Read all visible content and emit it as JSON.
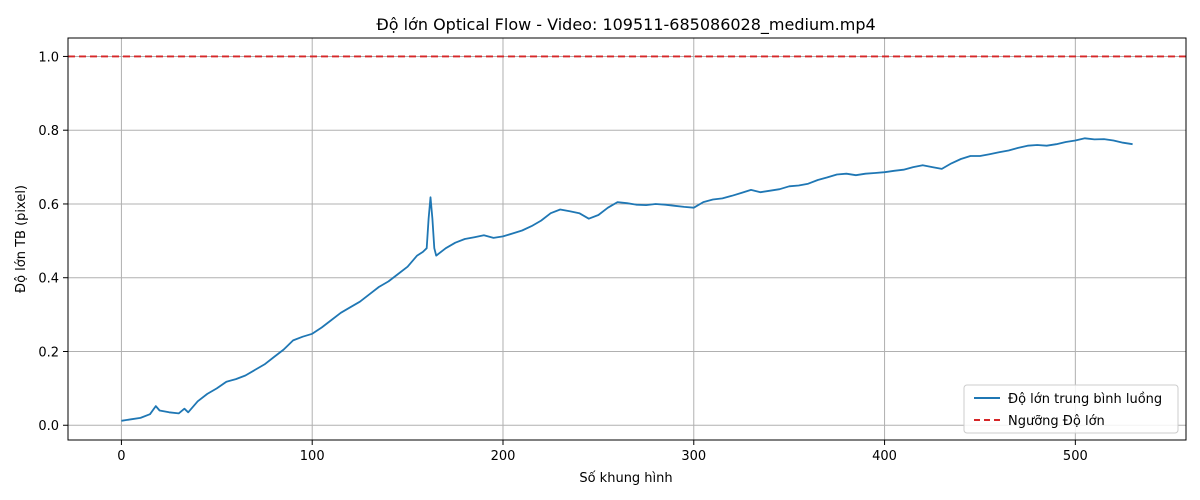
{
  "chart_data": {
    "type": "line",
    "title": "Độ lớn Optical Flow - Video: 109511-685086028_medium.mp4",
    "xlabel": "Số khung hình",
    "ylabel": "Độ lớn TB (pixel)",
    "xlim": [
      -28,
      558
    ],
    "ylim": [
      -0.04,
      1.05
    ],
    "xticks": [
      0,
      100,
      200,
      300,
      400,
      500
    ],
    "yticks": [
      0.0,
      0.2,
      0.4,
      0.6,
      0.8,
      1.0
    ],
    "xtick_labels": [
      "0",
      "100",
      "200",
      "300",
      "400",
      "500"
    ],
    "ytick_labels": [
      "0.0",
      "0.2",
      "0.4",
      "0.6",
      "0.8",
      "1.0"
    ],
    "grid": true,
    "legend_position": "bottom-right",
    "series": [
      {
        "name": "Độ lớn trung bình luồng",
        "color": "#1f77b4",
        "style": "solid",
        "x": [
          0,
          5,
          10,
          15,
          18,
          20,
          25,
          30,
          33,
          35,
          40,
          45,
          50,
          55,
          60,
          65,
          70,
          75,
          80,
          85,
          90,
          95,
          100,
          105,
          110,
          115,
          120,
          125,
          130,
          135,
          140,
          145,
          150,
          155,
          158,
          160,
          161,
          162,
          163,
          164,
          165,
          170,
          175,
          180,
          185,
          190,
          195,
          200,
          205,
          210,
          215,
          220,
          225,
          230,
          235,
          240,
          245,
          250,
          255,
          260,
          265,
          270,
          275,
          280,
          285,
          290,
          295,
          300,
          305,
          310,
          315,
          320,
          325,
          330,
          335,
          340,
          345,
          350,
          355,
          360,
          365,
          370,
          375,
          380,
          385,
          390,
          395,
          400,
          405,
          410,
          415,
          420,
          425,
          430,
          435,
          440,
          445,
          450,
          455,
          460,
          465,
          470,
          475,
          480,
          485,
          490,
          495,
          500,
          505,
          510,
          515,
          520,
          525,
          530
        ],
        "y": [
          0.012,
          0.016,
          0.02,
          0.03,
          0.052,
          0.04,
          0.035,
          0.032,
          0.045,
          0.035,
          0.065,
          0.085,
          0.1,
          0.118,
          0.125,
          0.135,
          0.15,
          0.165,
          0.185,
          0.205,
          0.23,
          0.24,
          0.248,
          0.265,
          0.285,
          0.305,
          0.32,
          0.335,
          0.355,
          0.375,
          0.39,
          0.41,
          0.43,
          0.46,
          0.47,
          0.48,
          0.56,
          0.618,
          0.56,
          0.48,
          0.46,
          0.48,
          0.495,
          0.505,
          0.51,
          0.515,
          0.508,
          0.512,
          0.52,
          0.528,
          0.54,
          0.555,
          0.575,
          0.585,
          0.58,
          0.575,
          0.56,
          0.57,
          0.59,
          0.605,
          0.602,
          0.598,
          0.597,
          0.6,
          0.598,
          0.595,
          0.592,
          0.59,
          0.605,
          0.612,
          0.615,
          0.622,
          0.63,
          0.638,
          0.632,
          0.636,
          0.64,
          0.648,
          0.65,
          0.655,
          0.665,
          0.672,
          0.68,
          0.682,
          0.678,
          0.682,
          0.684,
          0.686,
          0.69,
          0.693,
          0.7,
          0.705,
          0.7,
          0.695,
          0.71,
          0.722,
          0.73,
          0.73,
          0.735,
          0.74,
          0.745,
          0.752,
          0.758,
          0.76,
          0.758,
          0.762,
          0.768,
          0.772,
          0.778,
          0.775,
          0.776,
          0.772,
          0.766,
          0.762
        ]
      },
      {
        "name": "Ngưỡng Độ lớn",
        "color": "#d62728",
        "style": "dashed",
        "y_constant": 1.0
      }
    ]
  }
}
